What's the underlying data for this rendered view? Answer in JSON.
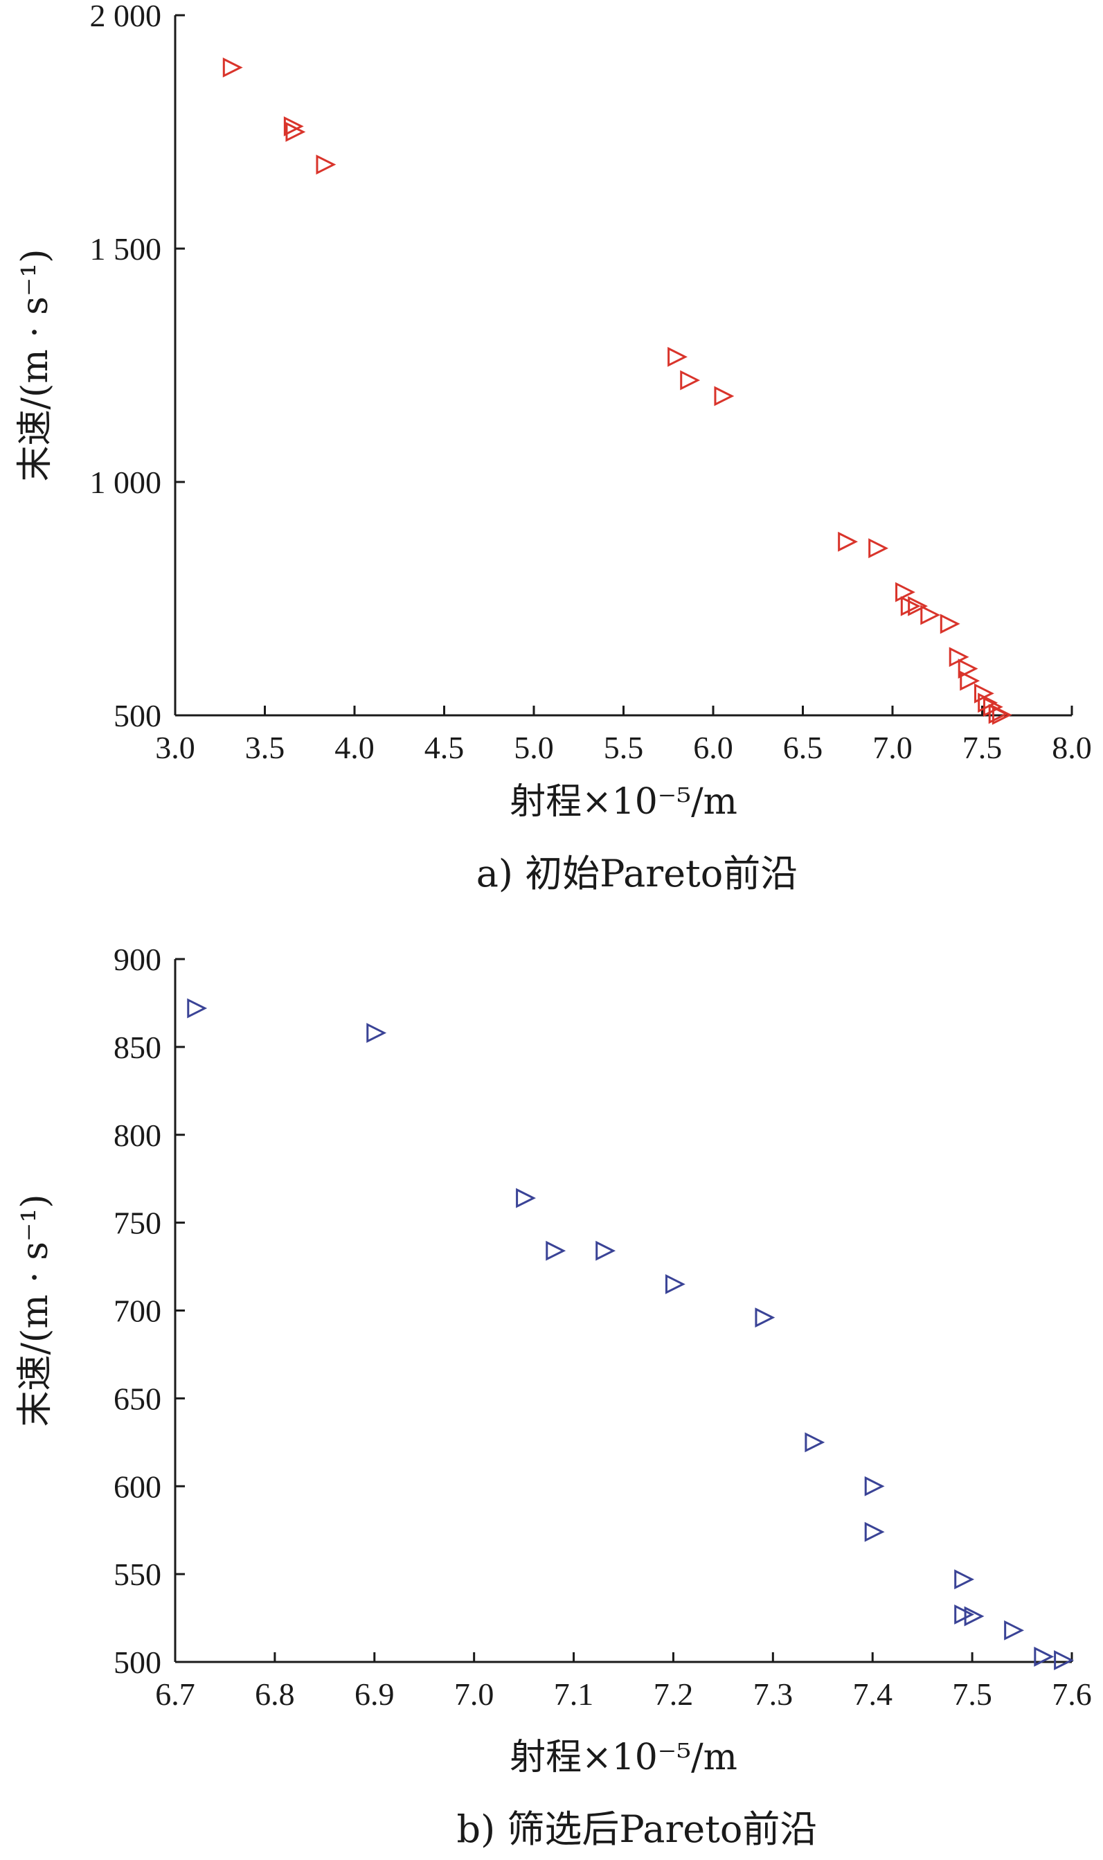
{
  "chart_data": [
    {
      "type": "scatter",
      "caption": "a) 初始Pareto前沿",
      "xlabel": "射程×10⁻⁵/m",
      "ylabel": "末速/(m · s⁻¹)",
      "xlim": [
        3.0,
        8.0
      ],
      "ylim": [
        500,
        2000
      ],
      "x_ticks": [
        3.0,
        3.5,
        4.0,
        4.5,
        5.0,
        5.5,
        6.0,
        6.5,
        7.0,
        7.5,
        8.0
      ],
      "x_tick_labels": [
        "3.0",
        "3.5",
        "4.0",
        "4.5",
        "5.0",
        "5.5",
        "6.0",
        "6.5",
        "7.0",
        "7.5",
        "8.0"
      ],
      "y_ticks": [
        500,
        1000,
        1500,
        2000
      ],
      "y_tick_labels": [
        "500",
        "1 000",
        "1 500",
        "2 000"
      ],
      "marker": "triangle-right",
      "color": "#d9342b",
      "grid": false,
      "points": [
        {
          "x": 3.31,
          "y": 1888
        },
        {
          "x": 3.65,
          "y": 1762
        },
        {
          "x": 3.66,
          "y": 1750
        },
        {
          "x": 3.83,
          "y": 1680
        },
        {
          "x": 5.79,
          "y": 1268
        },
        {
          "x": 5.86,
          "y": 1218
        },
        {
          "x": 6.05,
          "y": 1184
        },
        {
          "x": 6.74,
          "y": 872
        },
        {
          "x": 6.91,
          "y": 858
        },
        {
          "x": 7.06,
          "y": 764
        },
        {
          "x": 7.09,
          "y": 734
        },
        {
          "x": 7.13,
          "y": 734
        },
        {
          "x": 7.2,
          "y": 715
        },
        {
          "x": 7.31,
          "y": 696
        },
        {
          "x": 7.36,
          "y": 625
        },
        {
          "x": 7.41,
          "y": 600
        },
        {
          "x": 7.42,
          "y": 574
        },
        {
          "x": 7.5,
          "y": 547
        },
        {
          "x": 7.52,
          "y": 527
        },
        {
          "x": 7.55,
          "y": 518
        },
        {
          "x": 7.58,
          "y": 503
        },
        {
          "x": 7.6,
          "y": 501
        }
      ]
    },
    {
      "type": "scatter",
      "caption": "b) 筛选后Pareto前沿",
      "xlabel": "射程×10⁻⁵/m",
      "ylabel": "末速/(m · s⁻¹)",
      "xlim": [
        6.7,
        7.6
      ],
      "ylim": [
        500,
        900
      ],
      "x_ticks": [
        6.7,
        6.8,
        6.9,
        7.0,
        7.1,
        7.2,
        7.3,
        7.4,
        7.5,
        7.6
      ],
      "x_tick_labels": [
        "6.7",
        "6.8",
        "6.9",
        "7.0",
        "7.1",
        "7.2",
        "7.3",
        "7.4",
        "7.5",
        "7.6"
      ],
      "y_ticks": [
        500,
        550,
        600,
        650,
        700,
        750,
        800,
        850,
        900
      ],
      "y_tick_labels": [
        "500",
        "550",
        "600",
        "650",
        "700",
        "750",
        "800",
        "850",
        "900"
      ],
      "marker": "triangle-right",
      "color": "#3a4396",
      "grid": false,
      "points": [
        {
          "x": 6.72,
          "y": 872
        },
        {
          "x": 6.9,
          "y": 858
        },
        {
          "x": 7.05,
          "y": 764
        },
        {
          "x": 7.08,
          "y": 734
        },
        {
          "x": 7.13,
          "y": 734
        },
        {
          "x": 7.2,
          "y": 715
        },
        {
          "x": 7.29,
          "y": 696
        },
        {
          "x": 7.34,
          "y": 625
        },
        {
          "x": 7.4,
          "y": 600
        },
        {
          "x": 7.4,
          "y": 574
        },
        {
          "x": 7.49,
          "y": 547
        },
        {
          "x": 7.49,
          "y": 527
        },
        {
          "x": 7.5,
          "y": 526
        },
        {
          "x": 7.54,
          "y": 518
        },
        {
          "x": 7.57,
          "y": 503
        },
        {
          "x": 7.59,
          "y": 501
        }
      ]
    }
  ]
}
